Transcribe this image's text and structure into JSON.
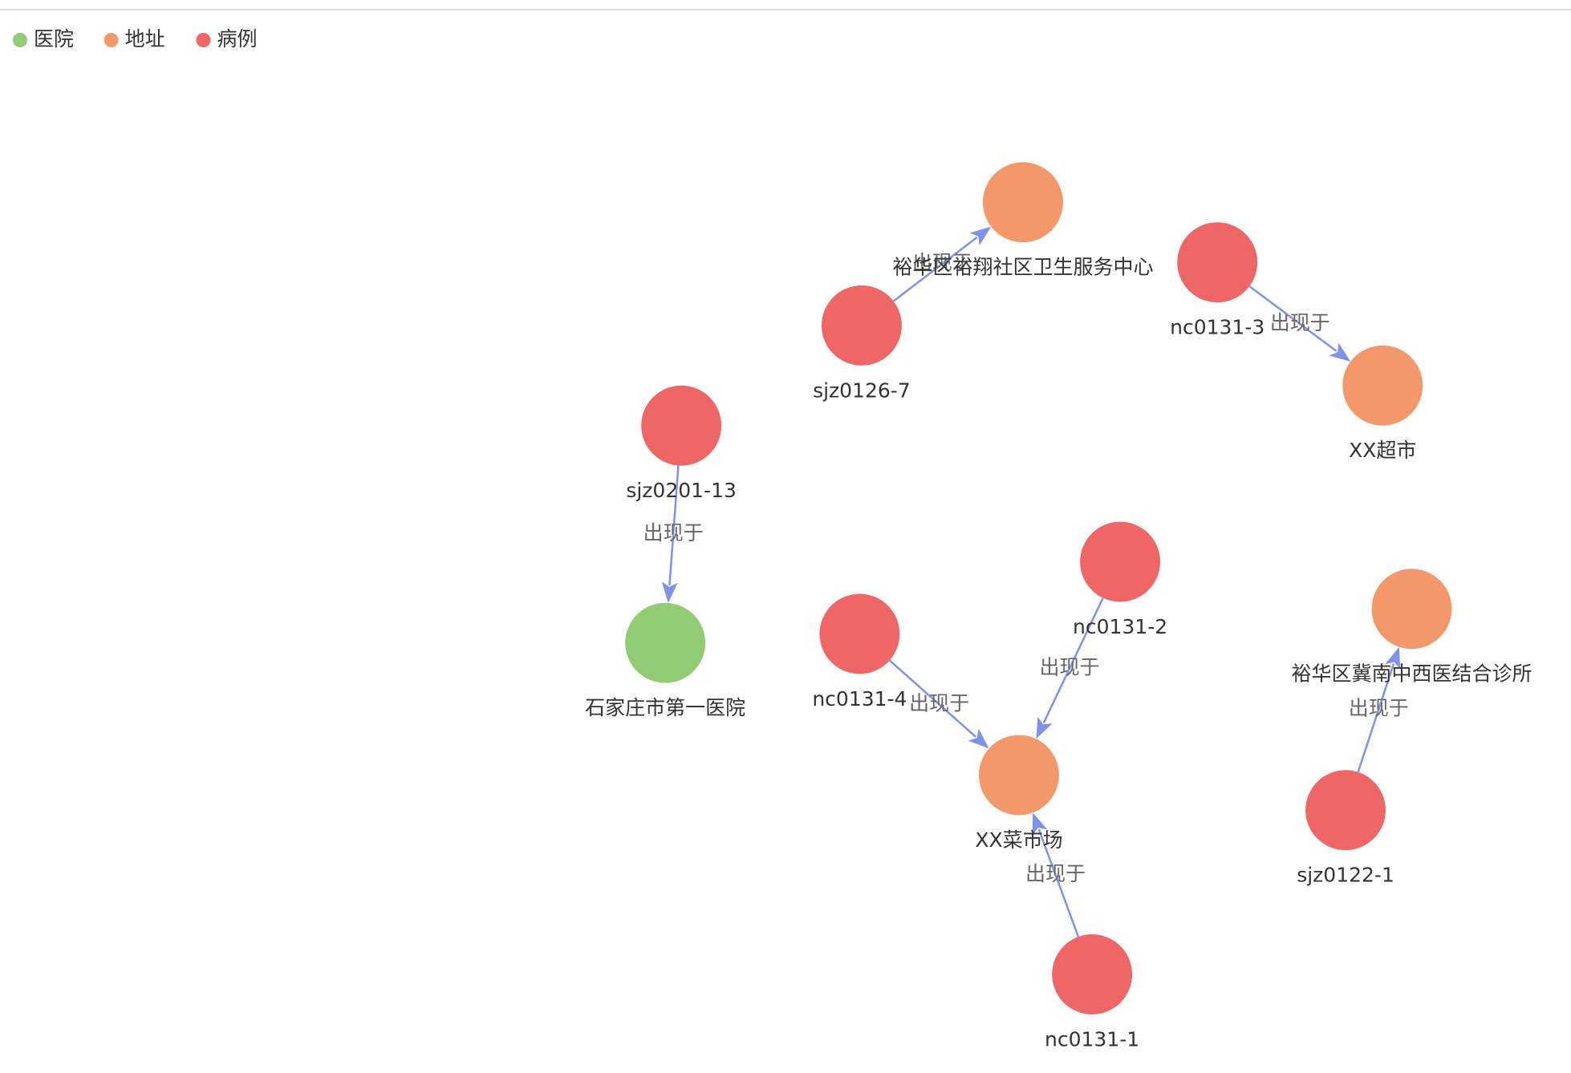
{
  "legend": {
    "categories": [
      {
        "name": "医院",
        "color": "#91cc75"
      },
      {
        "name": "地址",
        "color": "#f3986b"
      },
      {
        "name": "病例",
        "color": "#ee6666"
      }
    ]
  },
  "nodes": [
    {
      "label": "石家庄市第一医院",
      "category": "医院"
    },
    {
      "label": "裕华区裕翔社区卫生服务中心",
      "category": "地址"
    },
    {
      "label": "XX超市",
      "category": "地址"
    },
    {
      "label": "XX菜市场",
      "category": "地址"
    },
    {
      "label": "裕华区冀南中西医结合诊所",
      "category": "地址"
    },
    {
      "label": "sjz0201-13",
      "category": "病例"
    },
    {
      "label": "sjz0126-7",
      "category": "病例"
    },
    {
      "label": "nc0131-3",
      "category": "病例"
    },
    {
      "label": "nc0131-4",
      "category": "病例"
    },
    {
      "label": "nc0131-2",
      "category": "病例"
    },
    {
      "label": "nc0131-1",
      "category": "病例"
    },
    {
      "label": "sjz0122-1",
      "category": "病例"
    }
  ],
  "edges": [
    {
      "source": "sjz0201-13",
      "target": "石家庄市第一医院",
      "label": "出现于"
    },
    {
      "source": "sjz0126-7",
      "target": "裕华区裕翔社区卫生服务中心",
      "label": "出现于"
    },
    {
      "source": "nc0131-3",
      "target": "XX超市",
      "label": "出现于"
    },
    {
      "source": "nc0131-4",
      "target": "XX菜市场",
      "label": "出现于"
    },
    {
      "source": "nc0131-2",
      "target": "XX菜市场",
      "label": "出现于"
    },
    {
      "source": "nc0131-1",
      "target": "XX菜市场",
      "label": "出现于"
    },
    {
      "source": "sjz0122-1",
      "target": "裕华区冀南中西医结合诊所",
      "label": "出现于"
    }
  ]
}
